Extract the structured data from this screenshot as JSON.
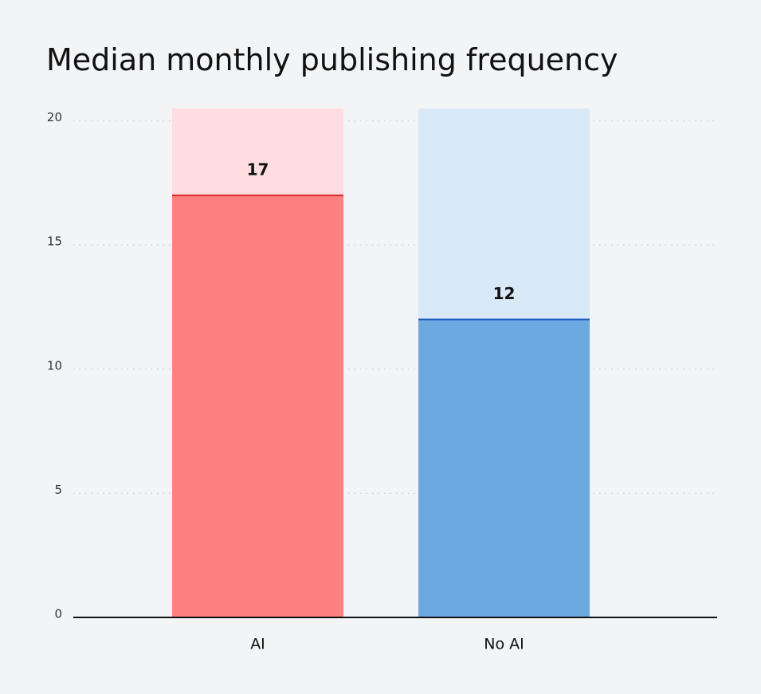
{
  "chart_data": {
    "type": "bar",
    "title": "Median monthly publishing frequency",
    "categories": [
      "AI",
      "No AI"
    ],
    "values": [
      17,
      12
    ],
    "colors": [
      "#ff8080",
      "#6ca9e1"
    ],
    "track_colors": [
      "#ffdde0",
      "#d8e9f8"
    ],
    "line_colors": [
      "#d42a2a",
      "#1f5cbf"
    ],
    "ylim": [
      0,
      20.5
    ],
    "yticks": [
      0,
      5,
      10,
      15,
      20
    ],
    "grid": true
  }
}
